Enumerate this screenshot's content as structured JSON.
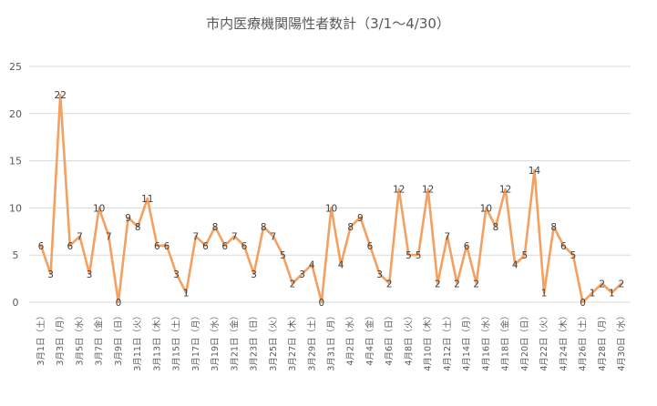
{
  "chart_data": {
    "type": "line",
    "title": "市内医療機関陽性者数計（3/1～4/30）",
    "xlabel": "",
    "ylabel": "",
    "ylim": [
      0,
      25
    ],
    "yticks": [
      0,
      5,
      10,
      15,
      20,
      25
    ],
    "grid": true,
    "legend": "none",
    "line_color": "#f4a060",
    "categories": [
      "3月1日",
      "3月2日",
      "3月3日",
      "3月4日",
      "3月5日",
      "3月6日",
      "3月7日",
      "3月8日",
      "3月9日",
      "3月10日",
      "3月11日",
      "3月12日",
      "3月13日",
      "3月14日",
      "3月15日",
      "3月16日",
      "3月17日",
      "3月18日",
      "3月19日",
      "3月20日",
      "3月21日",
      "3月22日",
      "3月23日",
      "3月24日",
      "3月25日",
      "3月26日",
      "3月27日",
      "3月28日",
      "3月29日",
      "3月30日",
      "3月31日",
      "4月1日",
      "4月2日",
      "4月3日",
      "4月4日",
      "4月5日",
      "4月6日",
      "4月7日",
      "4月8日",
      "4月9日",
      "4月10日",
      "4月11日",
      "4月12日",
      "4月13日",
      "4月14日",
      "4月15日",
      "4月16日",
      "4月17日",
      "4月18日",
      "4月19日",
      "4月20日",
      "4月21日",
      "4月22日",
      "4月23日",
      "4月24日",
      "4月25日",
      "4月26日",
      "4月27日",
      "4月28日",
      "4月29日",
      "4月30日"
    ],
    "tick_labels": [
      "3月1日（土）",
      "3月3日（月）",
      "3月5日（水）",
      "3月7日（金）",
      "3月9日（日）",
      "3月11日（火）",
      "3月13日（木）",
      "3月15日（土）",
      "3月17日（月）",
      "3月19日（水）",
      "3月21日（金）",
      "3月23日（日）",
      "3月25日（火）",
      "3月27日（木）",
      "3月29日（土）",
      "3月31日（月）",
      "4月2日（水）",
      "4月4日（金）",
      "4月6日（日）",
      "4月8日（火）",
      "4月10日（木）",
      "4月12日（土）",
      "4月14日（月）",
      "4月16日（水）",
      "4月18日（金）",
      "4月20日（日）",
      "4月22日（火）",
      "4月24日（木）",
      "4月26日（土）",
      "4月28日（月）",
      "4月30日（水）"
    ],
    "values": [
      6,
      3,
      22,
      6,
      7,
      3,
      10,
      7,
      0,
      9,
      8,
      11,
      6,
      6,
      3,
      1,
      7,
      6,
      8,
      6,
      7,
      6,
      3,
      8,
      7,
      5,
      2,
      3,
      4,
      0,
      10,
      4,
      8,
      9,
      6,
      3,
      2,
      12,
      5,
      5,
      12,
      2,
      7,
      2,
      6,
      2,
      10,
      8,
      12,
      4,
      5,
      14,
      1,
      8,
      6,
      5,
      0,
      1,
      2,
      1,
      2
    ]
  }
}
